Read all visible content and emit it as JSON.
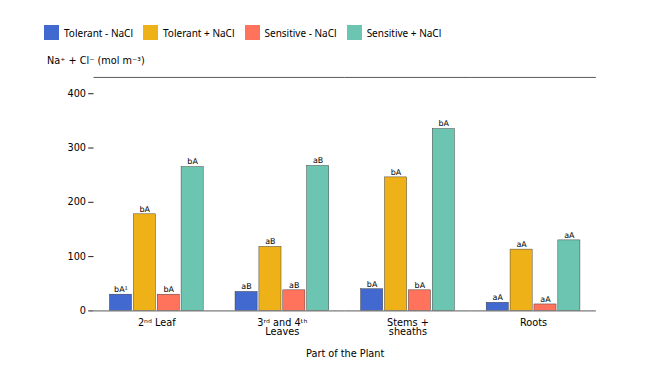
{
  "chart_data": {
    "type": "bar",
    "xlabel": "Part of the Plant",
    "ylabel": "Na⁺ + Cl⁻ (mol m⁻³)",
    "categories": [
      "2ⁿᵈ Leaf",
      "3ʳᵈ and 4ᵗʰ\nLeaves",
      "Stems +\nsheaths",
      "Roots"
    ],
    "series": [
      {
        "name": "Tolerant - NaCl",
        "values": [
          30,
          35,
          40,
          15
        ],
        "annotations": [
          "bA¹",
          "aB",
          "bA",
          "aA"
        ]
      },
      {
        "name": "Tolerant + NaCl",
        "values": [
          178,
          118,
          246,
          113
        ],
        "annotations": [
          "bA",
          "aB",
          "bA",
          "aA"
        ]
      },
      {
        "name": "Sensitive - NaCl",
        "values": [
          30,
          38,
          38,
          12
        ],
        "annotations": [
          "bA",
          "aB",
          "bA",
          "aA"
        ]
      },
      {
        "name": "Sensitive + NaCl",
        "values": [
          265,
          267,
          335,
          130
        ],
        "annotations": [
          "bA",
          "aB",
          "bA",
          "aA"
        ]
      }
    ],
    "ylim": [
      0,
      430
    ],
    "yticks": [
      0,
      100,
      200,
      300,
      400
    ],
    "grid": false,
    "legend": "upper left"
  }
}
